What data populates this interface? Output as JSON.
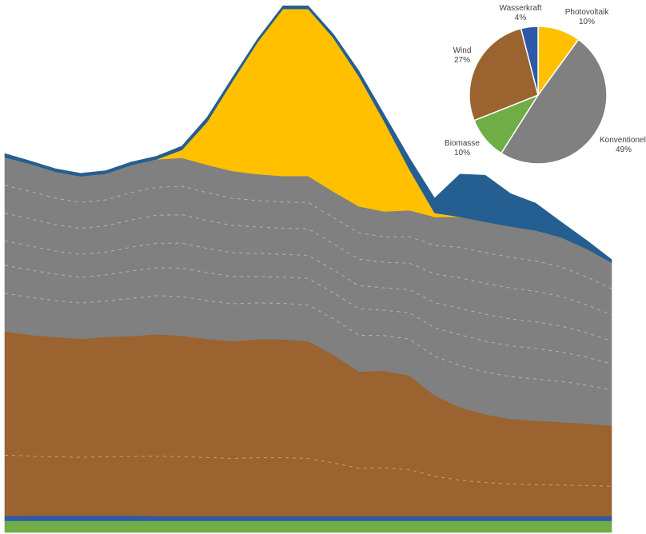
{
  "chart_data": [
    {
      "type": "area",
      "stacked": true,
      "title": "",
      "xlabel": "",
      "ylabel": "",
      "axes_visible": false,
      "grid": false,
      "legend": "none",
      "x": [
        0,
        1,
        2,
        3,
        4,
        5,
        6,
        7,
        8,
        9,
        10,
        11,
        12,
        13,
        14,
        15,
        16,
        17,
        18,
        19,
        20,
        21,
        22,
        23,
        24
      ],
      "series": [
        {
          "key": "biomasse",
          "name": "Biomasse",
          "color": "#70ad47",
          "values": [
            30,
            30,
            30,
            30,
            30,
            30,
            30,
            30,
            30,
            30,
            30,
            30,
            30,
            30,
            30,
            30,
            30,
            30,
            30,
            30,
            30,
            30,
            30,
            30,
            30
          ]
        },
        {
          "key": "wasserkraft",
          "name": "Wasserkraft",
          "color": "#2e59a8",
          "values": [
            12,
            13,
            13,
            13,
            13,
            13,
            12,
            12,
            12,
            12,
            12,
            12,
            12,
            12,
            12,
            12,
            12,
            12,
            12,
            12,
            12,
            12,
            12,
            12,
            12
          ]
        },
        {
          "key": "wind",
          "name": "Wind",
          "color": "#9a6330",
          "values": [
            475,
            465,
            460,
            455,
            460,
            462,
            468,
            464,
            456,
            450,
            455,
            455,
            450,
            415,
            372,
            374,
            362,
            310,
            280,
            262,
            250,
            245,
            242,
            238,
            232
          ]
        },
        {
          "key": "konventionell",
          "name": "Konventionell",
          "color": "#808080",
          "values": [
            448,
            440,
            425,
            418,
            420,
            440,
            450,
            458,
            448,
            438,
            425,
            420,
            425,
            420,
            425,
            410,
            425,
            460,
            490,
            495,
            495,
            490,
            475,
            450,
            420
          ]
        },
        {
          "key": "photovoltaik",
          "name": "Photovoltaik",
          "color": "#ffc000",
          "values": [
            0,
            0,
            0,
            0,
            0,
            0,
            0,
            20,
            110,
            230,
            340,
            430,
            430,
            395,
            335,
            232,
            105,
            10,
            0,
            0,
            0,
            0,
            0,
            0,
            0
          ]
        },
        {
          "key": "sonstige",
          "name": "",
          "color": "#255e91",
          "values": [
            10,
            8,
            8,
            8,
            8,
            8,
            8,
            10,
            12,
            10,
            8,
            8,
            8,
            10,
            14,
            18,
            30,
            38,
            110,
            120,
            85,
            70,
            40,
            22,
            8
          ]
        }
      ],
      "ylim": [
        0,
        1370
      ]
    },
    {
      "type": "pie",
      "start_angle_deg": 0,
      "direction": "clockwise",
      "slices": [
        {
          "name": "Photovoltaik",
          "percent_label": "10%",
          "value": 10,
          "color": "#ffc000"
        },
        {
          "name": "Konventionell",
          "percent_label": "49%",
          "value": 49,
          "color": "#808080"
        },
        {
          "name": "Biomasse",
          "percent_label": "10%",
          "value": 10,
          "color": "#70ad47"
        },
        {
          "name": "Wind",
          "percent_label": "27%",
          "value": 27,
          "color": "#9a6330"
        },
        {
          "name": "Wasserkraft",
          "percent_label": "4%",
          "value": 4,
          "color": "#2e59a8"
        }
      ]
    }
  ]
}
